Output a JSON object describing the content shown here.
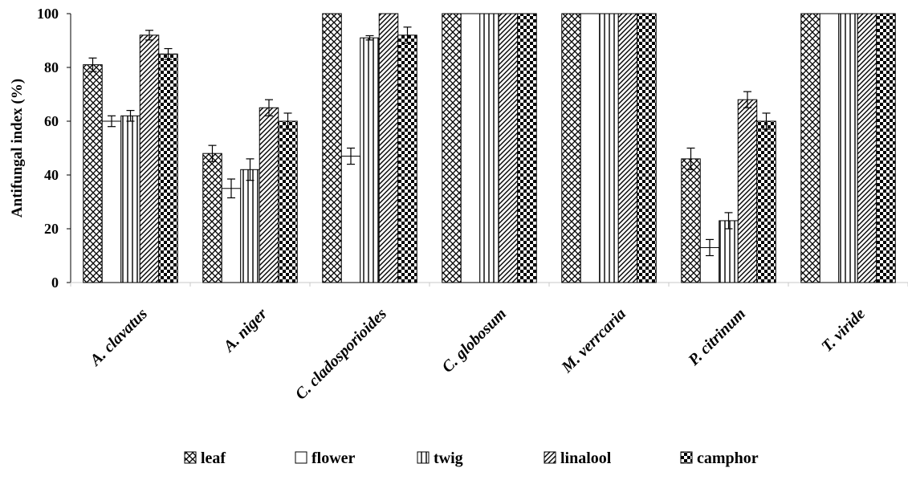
{
  "chart_data": {
    "type": "bar",
    "title": "",
    "xlabel": "",
    "ylabel": "Antifungal index (%)",
    "ylim": [
      0,
      100
    ],
    "yticks": [
      0,
      20,
      40,
      60,
      80,
      100
    ],
    "grid": false,
    "legend_position": "bottom",
    "categories": [
      "A. clavatus",
      "A. niger",
      "C. cladosporioides",
      "C. globosum",
      "M. verrcaria",
      "P. citrinum",
      "T. viride"
    ],
    "series": [
      {
        "name": "leaf",
        "pattern": "crosshatch-diamond",
        "values": [
          81,
          48,
          100,
          100,
          100,
          46,
          100
        ],
        "errors": [
          2.5,
          3,
          0,
          0,
          0,
          4,
          0
        ]
      },
      {
        "name": "flower",
        "pattern": "blank",
        "values": [
          60,
          35,
          47,
          100,
          100,
          13,
          100
        ],
        "errors": [
          2,
          3.5,
          3,
          0,
          0,
          3,
          0
        ]
      },
      {
        "name": "twig",
        "pattern": "vertical-lines",
        "values": [
          62,
          42,
          91,
          100,
          100,
          23,
          100
        ],
        "errors": [
          2,
          4,
          0.8,
          0,
          0,
          3,
          0
        ]
      },
      {
        "name": "linalool",
        "pattern": "diagonal-lines",
        "values": [
          92,
          65,
          100,
          100,
          100,
          68,
          100
        ],
        "errors": [
          1.8,
          3,
          0,
          0,
          0,
          3,
          0
        ]
      },
      {
        "name": "camphor",
        "pattern": "checkerboard",
        "values": [
          85,
          60,
          92,
          100,
          100,
          60,
          100
        ],
        "errors": [
          2,
          3,
          3,
          0,
          0,
          3,
          0
        ]
      }
    ]
  }
}
